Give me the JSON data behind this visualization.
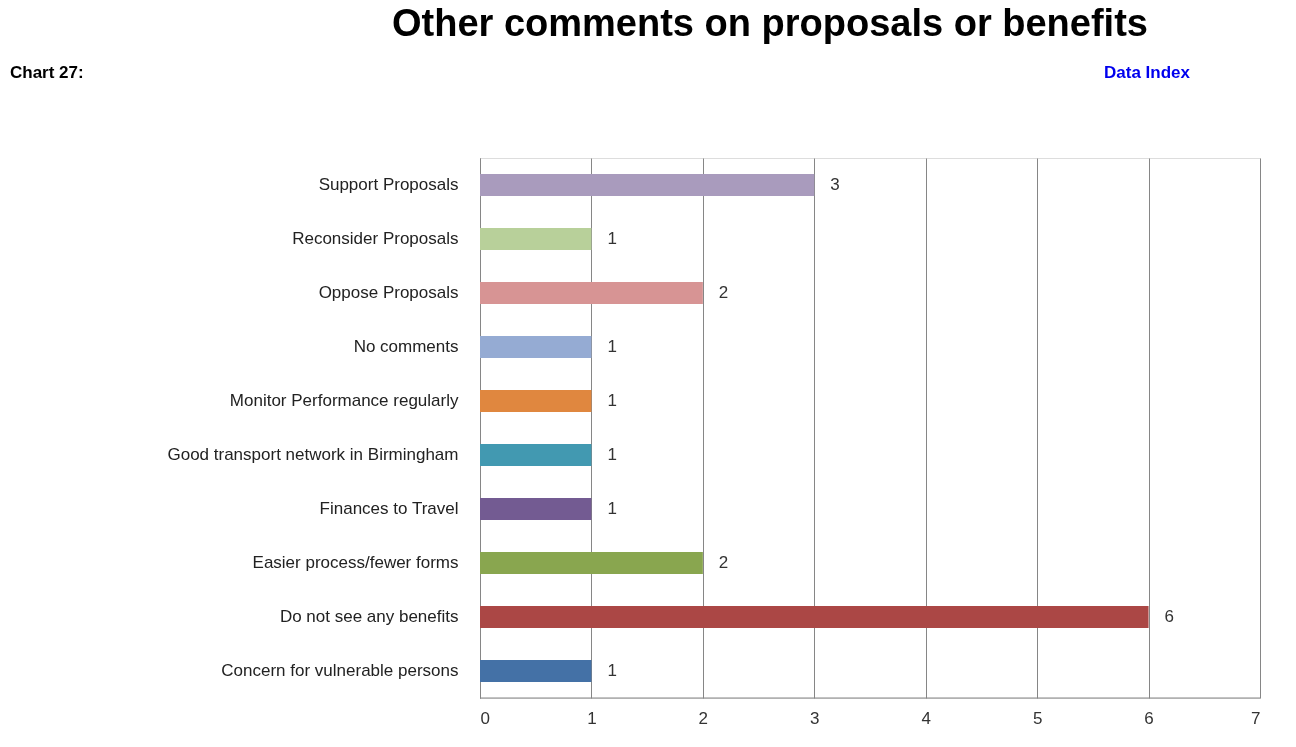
{
  "chart_data": {
    "type": "bar",
    "orientation": "horizontal",
    "title": "Other comments on proposals or benefits",
    "categories": [
      "Support Proposals",
      "Reconsider Proposals",
      "Oppose Proposals",
      "No comments",
      "Monitor Performance regularly",
      "Good transport network in Birmingham",
      "Finances to Travel",
      "Easier process/fewer forms",
      "Do not see any benefits",
      "Concern for vulnerable persons"
    ],
    "values": [
      3,
      1,
      2,
      1,
      1,
      1,
      1,
      2,
      6,
      1
    ],
    "colors": [
      "#a99bbd",
      "#b8d09a",
      "#d79494",
      "#95abd3",
      "#e0873f",
      "#4299b1",
      "#735b92",
      "#89a64f",
      "#ab4745",
      "#4471a6"
    ],
    "xlim": [
      0,
      7
    ],
    "xticks": [
      0,
      1,
      2,
      3,
      4,
      5,
      6,
      7
    ],
    "grid": "x",
    "data_labels": true,
    "annotations": [
      "Chart 27:",
      "Data Index"
    ]
  }
}
